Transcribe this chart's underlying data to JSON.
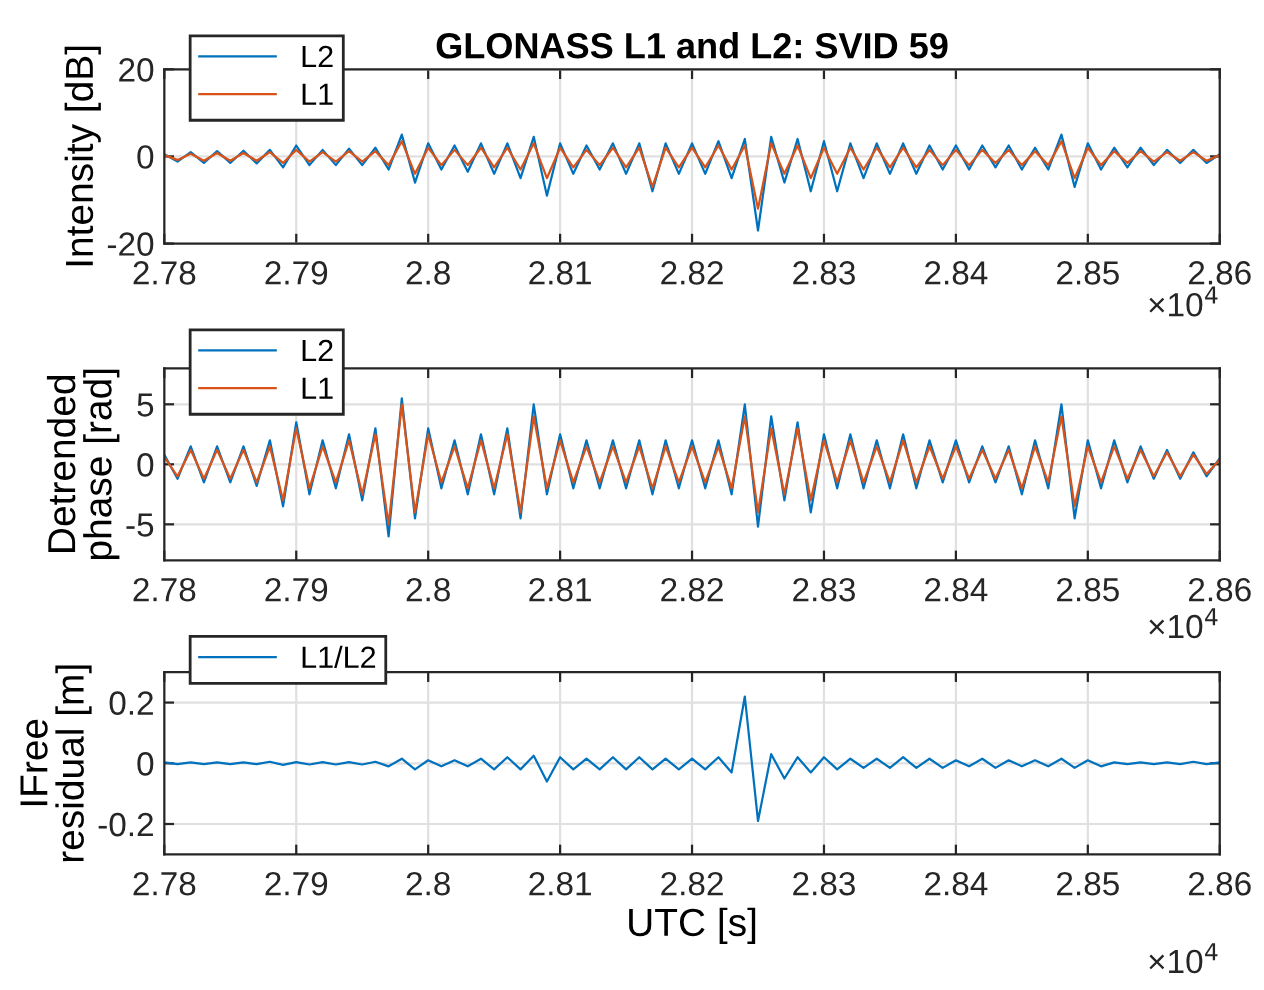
{
  "chart_data": [
    {
      "type": "line",
      "title": "GLONASS L1 and L2: SVID 59",
      "ylabel": "Intensity [dB]",
      "annotations": [
        "×10$^{4}$"
      ],
      "x": [
        2.78,
        2.781,
        2.782,
        2.783,
        2.784,
        2.785,
        2.786,
        2.787,
        2.788,
        2.789,
        2.79,
        2.791,
        2.792,
        2.793,
        2.794,
        2.795,
        2.796,
        2.797,
        2.798,
        2.799,
        2.8,
        2.801,
        2.802,
        2.803,
        2.804,
        2.805,
        2.806,
        2.807,
        2.808,
        2.809,
        2.81,
        2.811,
        2.812,
        2.813,
        2.814,
        2.815,
        2.816,
        2.817,
        2.818,
        2.819,
        2.82,
        2.821,
        2.822,
        2.823,
        2.824,
        2.825,
        2.826,
        2.827,
        2.828,
        2.829,
        2.83,
        2.831,
        2.832,
        2.833,
        2.834,
        2.835,
        2.836,
        2.837,
        2.838,
        2.839,
        2.84,
        2.841,
        2.842,
        2.843,
        2.844,
        2.845,
        2.846,
        2.847,
        2.848,
        2.849,
        2.85,
        2.851,
        2.852,
        2.853,
        2.854,
        2.855,
        2.856,
        2.857,
        2.858,
        2.859,
        2.86
      ],
      "series": [
        {
          "name": "L2",
          "color": "#0072bd",
          "values": [
            0.5,
            -1.2,
            1.0,
            -1.5,
            1.2,
            -1.5,
            1.3,
            -1.6,
            1.5,
            -2.5,
            2.5,
            -2,
            1.5,
            -2,
            1.8,
            -2,
            2,
            -3,
            5,
            -6,
            3,
            -3,
            2.5,
            -3.5,
            3,
            -4,
            3,
            -5,
            4.5,
            -9,
            3,
            -4,
            2.5,
            -3,
            3,
            -4,
            3,
            -8,
            3,
            -4,
            3,
            -4,
            3.5,
            -5,
            4,
            -17,
            4.5,
            -6,
            4,
            -8,
            3.5,
            -8,
            3,
            -5,
            3,
            -4,
            3,
            -4,
            2.5,
            -3,
            2.5,
            -3,
            2.5,
            -2.5,
            2.5,
            -3,
            2,
            -3,
            5,
            -7,
            3,
            -3,
            2,
            -2.5,
            2,
            -2,
            1.5,
            -1.5,
            1.5,
            -1.5,
            0.5
          ]
        },
        {
          "name": "L1",
          "color": "#d95319",
          "values": [
            0.3,
            -0.8,
            0.6,
            -1,
            0.8,
            -1,
            0.8,
            -1,
            1,
            -1.5,
            1.5,
            -1.2,
            1,
            -1.2,
            1.2,
            -1.2,
            1.2,
            -2,
            3.5,
            -4,
            2,
            -2,
            1.5,
            -2,
            2,
            -2.5,
            2,
            -3,
            3,
            -5,
            2,
            -2.5,
            1.5,
            -2,
            2,
            -2.5,
            2,
            -7,
            2,
            -2.5,
            2,
            -2.5,
            2.5,
            -3,
            2.5,
            -12,
            3,
            -4,
            2.5,
            -5,
            2,
            -4,
            2,
            -3,
            2,
            -2.5,
            2,
            -2.5,
            1.5,
            -2,
            1.5,
            -2,
            1.5,
            -1.5,
            1.5,
            -2,
            1.2,
            -2,
            3.5,
            -5,
            2,
            -2,
            1.2,
            -1.5,
            1.2,
            -1.2,
            1,
            -1,
            1,
            -1,
            0.3
          ]
        }
      ],
      "xlim": [
        2.78,
        2.86
      ],
      "xticks": [
        2.78,
        2.79,
        2.8,
        2.81,
        2.82,
        2.83,
        2.84,
        2.85,
        2.86
      ],
      "ylim": [
        -20,
        20
      ],
      "yticks": [
        -20,
        0,
        20
      ],
      "grid": true,
      "legend": "top left",
      "line_style": "solid"
    },
    {
      "type": "line",
      "ylabel": "Detrended\nphase [rad]",
      "annotations": [
        "×10$^{4}$"
      ],
      "x": [
        2.78,
        2.781,
        2.782,
        2.783,
        2.784,
        2.785,
        2.786,
        2.787,
        2.788,
        2.789,
        2.79,
        2.791,
        2.792,
        2.793,
        2.794,
        2.795,
        2.796,
        2.797,
        2.798,
        2.799,
        2.8,
        2.801,
        2.802,
        2.803,
        2.804,
        2.805,
        2.806,
        2.807,
        2.808,
        2.809,
        2.81,
        2.811,
        2.812,
        2.813,
        2.814,
        2.815,
        2.816,
        2.817,
        2.818,
        2.819,
        2.82,
        2.821,
        2.822,
        2.823,
        2.824,
        2.825,
        2.826,
        2.827,
        2.828,
        2.829,
        2.83,
        2.831,
        2.832,
        2.833,
        2.834,
        2.835,
        2.836,
        2.837,
        2.838,
        2.839,
        2.84,
        2.841,
        2.842,
        2.843,
        2.844,
        2.845,
        2.846,
        2.847,
        2.848,
        2.849,
        2.85,
        2.851,
        2.852,
        2.853,
        2.854,
        2.855,
        2.856,
        2.857,
        2.858,
        2.859,
        2.86
      ],
      "series": [
        {
          "name": "L2",
          "color": "#0072bd",
          "values": [
            0.8,
            -1.2,
            1.5,
            -1.5,
            1.5,
            -1.5,
            1.5,
            -1.8,
            2,
            -3.5,
            3.5,
            -2.5,
            2,
            -2,
            2.5,
            -3,
            3,
            -6,
            5.5,
            -4.5,
            3,
            -2,
            2,
            -2.5,
            2.5,
            -2.5,
            3,
            -4.5,
            5,
            -2.5,
            2.5,
            -2,
            2,
            -2,
            2,
            -2,
            2,
            -2.5,
            2,
            -2,
            2,
            -2,
            2,
            -2.5,
            5,
            -5.2,
            4,
            -3,
            3.5,
            -4,
            2.5,
            -2,
            2.5,
            -2,
            2,
            -2,
            2.5,
            -2,
            2,
            -1.5,
            2,
            -1.5,
            1.5,
            -1.5,
            1.5,
            -2.5,
            2,
            -2,
            5,
            -4.5,
            2,
            -2,
            2,
            -1.5,
            1.5,
            -1.2,
            1.2,
            -1.2,
            1,
            -1,
            0.5
          ]
        },
        {
          "name": "L1",
          "color": "#d95319",
          "values": [
            0.6,
            -1,
            1.2,
            -1.2,
            1.2,
            -1.2,
            1.2,
            -1.5,
            1.5,
            -3,
            3,
            -2,
            1.5,
            -1.5,
            2,
            -2.5,
            2.5,
            -5,
            5,
            -4,
            2.5,
            -1.5,
            1.5,
            -2,
            2,
            -2,
            2.5,
            -4,
            4,
            -2,
            2,
            -1.5,
            1.5,
            -1.5,
            1.5,
            -1.5,
            1.5,
            -2,
            1.5,
            -1.5,
            1.5,
            -1.5,
            1.5,
            -2,
            4,
            -4,
            3,
            -2.5,
            3,
            -3,
            2,
            -1.5,
            2,
            -1.5,
            1.5,
            -1.5,
            2,
            -1.5,
            1.5,
            -1.2,
            1.5,
            -1.2,
            1.2,
            -1.2,
            1.2,
            -2,
            1.5,
            -1.5,
            4,
            -3.5,
            1.5,
            -1.5,
            1.5,
            -1.2,
            1.2,
            -1,
            1,
            -1,
            0.8,
            -0.8,
            0.4
          ]
        }
      ],
      "xlim": [
        2.78,
        2.86
      ],
      "xticks": [
        2.78,
        2.79,
        2.8,
        2.81,
        2.82,
        2.83,
        2.84,
        2.85,
        2.86
      ],
      "ylim": [
        -8,
        8
      ],
      "yticks": [
        -5,
        0,
        5
      ],
      "grid": true,
      "legend": "top left",
      "line_style": "solid"
    },
    {
      "type": "line",
      "ylabel": "IFree\nresidual [m]",
      "xlabel": "UTC [s]",
      "annotations": [
        "×10$^{4}$"
      ],
      "x": [
        2.78,
        2.781,
        2.782,
        2.783,
        2.784,
        2.785,
        2.786,
        2.787,
        2.788,
        2.789,
        2.79,
        2.791,
        2.792,
        2.793,
        2.794,
        2.795,
        2.796,
        2.797,
        2.798,
        2.799,
        2.8,
        2.801,
        2.802,
        2.803,
        2.804,
        2.805,
        2.806,
        2.807,
        2.808,
        2.809,
        2.81,
        2.811,
        2.812,
        2.813,
        2.814,
        2.815,
        2.816,
        2.817,
        2.818,
        2.819,
        2.82,
        2.821,
        2.822,
        2.823,
        2.824,
        2.825,
        2.826,
        2.827,
        2.828,
        2.829,
        2.83,
        2.831,
        2.832,
        2.833,
        2.834,
        2.835,
        2.836,
        2.837,
        2.838,
        2.839,
        2.84,
        2.841,
        2.842,
        2.843,
        2.844,
        2.845,
        2.846,
        2.847,
        2.848,
        2.849,
        2.85,
        2.851,
        2.852,
        2.853,
        2.854,
        2.855,
        2.856,
        2.857,
        2.858,
        2.859,
        2.86
      ],
      "series": [
        {
          "name": "L1/L2",
          "color": "#0072bd",
          "values": [
            0.003,
            -0.003,
            0.003,
            -0.003,
            0.003,
            -0.003,
            0.003,
            -0.003,
            0.005,
            -0.005,
            0.004,
            -0.004,
            0.004,
            -0.004,
            0.004,
            -0.004,
            0.005,
            -0.01,
            0.015,
            -0.02,
            0.01,
            -0.01,
            0.01,
            -0.01,
            0.015,
            -0.02,
            0.02,
            -0.02,
            0.025,
            -0.06,
            0.02,
            -0.02,
            0.015,
            -0.02,
            0.02,
            -0.02,
            0.02,
            -0.02,
            0.015,
            -0.02,
            0.015,
            -0.02,
            0.02,
            -0.03,
            0.22,
            -0.19,
            0.03,
            -0.05,
            0.02,
            -0.03,
            0.02,
            -0.02,
            0.015,
            -0.015,
            0.015,
            -0.015,
            0.02,
            -0.015,
            0.015,
            -0.015,
            0.01,
            -0.01,
            0.015,
            -0.015,
            0.01,
            -0.01,
            0.01,
            -0.01,
            0.015,
            -0.015,
            0.01,
            -0.01,
            0.003,
            -0.003,
            0.003,
            -0.003,
            0.003,
            -0.003,
            0.005,
            -0.003,
            0.003
          ]
        }
      ],
      "xlim": [
        2.78,
        2.86
      ],
      "xticks": [
        2.78,
        2.79,
        2.8,
        2.81,
        2.82,
        2.83,
        2.84,
        2.85,
        2.86
      ],
      "ylim": [
        -0.3,
        0.3
      ],
      "yticks": [
        -0.2,
        0,
        0.2
      ],
      "grid": true,
      "legend": "top left",
      "line_style": "solid"
    }
  ]
}
